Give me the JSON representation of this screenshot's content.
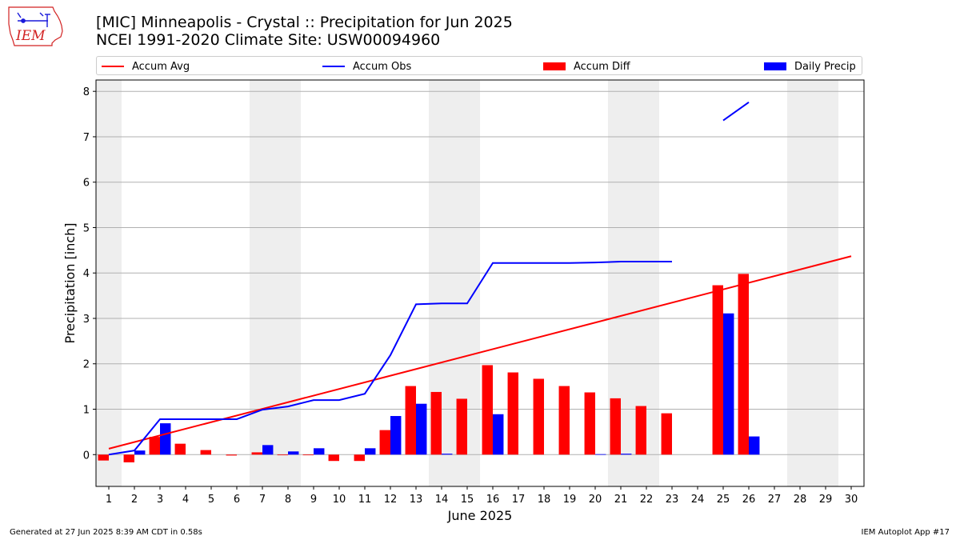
{
  "header": {
    "title_line1": "[MIC] Minneapolis - Crystal :: Precipitation for Jun 2025",
    "title_line2": "NCEI 1991-2020 Climate Site: USW00094960"
  },
  "logo": {
    "text": "IEM",
    "icon": "iowa-state-outline-weather-icon"
  },
  "legend": {
    "accum_avg": "Accum Avg",
    "accum_obs": "Accum Obs",
    "accum_diff": "Accum Diff",
    "daily_precip": "Daily Precip"
  },
  "colors": {
    "accum_avg": "#ff0000",
    "accum_obs": "#0000ff",
    "accum_diff": "#ff0000",
    "daily_precip": "#0000ff",
    "weekend": "#eeeeee",
    "grid": "#b0b0b0",
    "logo": "#d22222"
  },
  "chart_data": {
    "type": "bar",
    "title": "[MIC] Minneapolis - Crystal :: Precipitation for Jun 2025",
    "subtitle": "NCEI 1991-2020 Climate Site: USW00094960",
    "xlabel": "June 2025",
    "ylabel": "Precipitation [inch]",
    "ylim": [
      -0.7,
      8.25
    ],
    "yticks": [
      0,
      1,
      2,
      3,
      4,
      5,
      6,
      7,
      8
    ],
    "xlim": [
      0.5,
      30.5
    ],
    "days": [
      1,
      2,
      3,
      4,
      5,
      6,
      7,
      8,
      9,
      10,
      11,
      12,
      13,
      14,
      15,
      16,
      17,
      18,
      19,
      20,
      21,
      22,
      23,
      24,
      25,
      26,
      27,
      28,
      29,
      30
    ],
    "weekend_shading": [
      [
        0.5,
        1.5
      ],
      [
        6.5,
        8.5
      ],
      [
        13.5,
        15.5
      ],
      [
        20.5,
        22.5
      ],
      [
        27.5,
        29.5
      ]
    ],
    "series": [
      {
        "name": "Accum Avg",
        "kind": "line",
        "x": [
          1,
          30
        ],
        "values": [
          0.13,
          4.37
        ]
      },
      {
        "name": "Accum Obs",
        "kind": "line",
        "segments": [
          {
            "x": [
              1,
              2,
              3,
              4,
              5,
              6,
              7,
              8,
              9,
              10,
              11,
              12,
              13,
              14,
              15,
              16,
              17,
              18,
              19,
              20,
              21,
              22,
              23
            ],
            "values": [
              0.0,
              0.09,
              0.78,
              0.78,
              0.78,
              0.78,
              0.99,
              1.06,
              1.2,
              1.2,
              1.34,
              2.19,
              3.31,
              3.33,
              3.33,
              4.22,
              4.22,
              4.22,
              4.22,
              4.23,
              4.25,
              4.25,
              4.25
            ]
          },
          {
            "x": [
              25,
              26
            ],
            "values": [
              7.36,
              7.76
            ]
          }
        ]
      },
      {
        "name": "Accum Diff",
        "kind": "bar",
        "x": [
          1,
          2,
          3,
          4,
          5,
          6,
          7,
          8,
          9,
          10,
          11,
          12,
          13,
          14,
          15,
          16,
          17,
          18,
          19,
          20,
          21,
          22,
          23,
          25,
          26
        ],
        "values": [
          -0.13,
          -0.17,
          0.39,
          0.24,
          0.1,
          -0.02,
          0.05,
          0.0,
          0.0,
          -0.14,
          -0.14,
          0.54,
          1.51,
          1.38,
          1.23,
          1.97,
          1.81,
          1.67,
          1.51,
          1.37,
          1.24,
          1.07,
          0.91,
          3.73,
          3.98
        ]
      },
      {
        "name": "Daily Precip",
        "kind": "bar",
        "x": [
          2,
          3,
          7,
          8,
          9,
          11,
          12,
          13,
          14,
          16,
          20,
          21,
          25,
          26
        ],
        "values": [
          0.09,
          0.69,
          0.21,
          0.07,
          0.14,
          0.14,
          0.85,
          1.12,
          0.02,
          0.89,
          0.01,
          0.02,
          3.11,
          0.4
        ]
      }
    ]
  },
  "footer": {
    "generated": "Generated at 27 Jun 2025 8:39 AM CDT in 0.58s",
    "app": "IEM Autoplot App #17"
  }
}
